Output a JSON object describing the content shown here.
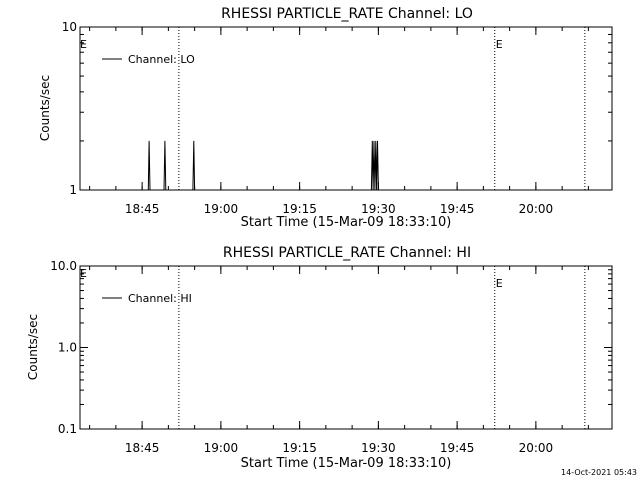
{
  "footer": {
    "timestamp": "14-Oct-2021 05:43"
  },
  "chart_data": [
    {
      "type": "line",
      "title": "RHESSI PARTICLE_RATE Channel: LO",
      "xlabel": "Start Time (15-Mar-09 18:33:10)",
      "ylabel": "Counts/sec",
      "yscale": "log",
      "xlim": [
        "18:33:10",
        "20:14:30"
      ],
      "ylim": [
        1,
        10
      ],
      "x_ticks": [
        "18:45",
        "19:00",
        "19:15",
        "19:30",
        "19:45",
        "20:00"
      ],
      "y_ticks": [
        "1",
        "10"
      ],
      "legend": {
        "entries": [
          "Channel: LO"
        ],
        "position": "top-left"
      },
      "event_markers": [
        {
          "time": "18:52:00",
          "label": ""
        },
        {
          "time": "19:52:10",
          "label": "E"
        },
        {
          "time": "20:09:20",
          "label": ""
        }
      ],
      "start_marker_label": "E",
      "series": [
        {
          "name": "Channel: LO",
          "points": [
            [
              "18:46:10",
              1
            ],
            [
              "18:46:20",
              2
            ],
            [
              "18:46:30",
              1
            ],
            [
              "18:49:10",
              1
            ],
            [
              "18:49:20",
              2
            ],
            [
              "18:49:30",
              1
            ],
            [
              "18:54:40",
              1
            ],
            [
              "18:54:50",
              2
            ],
            [
              "18:55:00",
              1
            ],
            [
              "19:28:40",
              1
            ],
            [
              "19:28:50",
              2
            ],
            [
              "19:29:00",
              1
            ],
            [
              "19:29:10",
              2
            ],
            [
              "19:29:20",
              1
            ],
            [
              "19:29:30",
              2
            ],
            [
              "19:29:40",
              1
            ],
            [
              "19:29:50",
              2
            ],
            [
              "19:30:00",
              1
            ]
          ]
        }
      ]
    },
    {
      "type": "line",
      "title": "RHESSI PARTICLE_RATE Channel: HI",
      "xlabel": "Start Time (15-Mar-09 18:33:10)",
      "ylabel": "Counts/sec",
      "yscale": "log",
      "xlim": [
        "18:33:10",
        "20:14:30"
      ],
      "ylim": [
        0.1,
        10
      ],
      "x_ticks": [
        "18:45",
        "19:00",
        "19:15",
        "19:30",
        "19:45",
        "20:00"
      ],
      "y_ticks": [
        "0.1",
        "1.0",
        "10.0"
      ],
      "legend": {
        "entries": [
          "Channel: HI"
        ],
        "position": "top-left"
      },
      "event_markers": [
        {
          "time": "18:52:00",
          "label": ""
        },
        {
          "time": "19:52:10",
          "label": "E"
        },
        {
          "time": "20:09:20",
          "label": ""
        }
      ],
      "start_marker_label": "E",
      "series": [
        {
          "name": "Channel: HI",
          "points": []
        }
      ]
    }
  ]
}
